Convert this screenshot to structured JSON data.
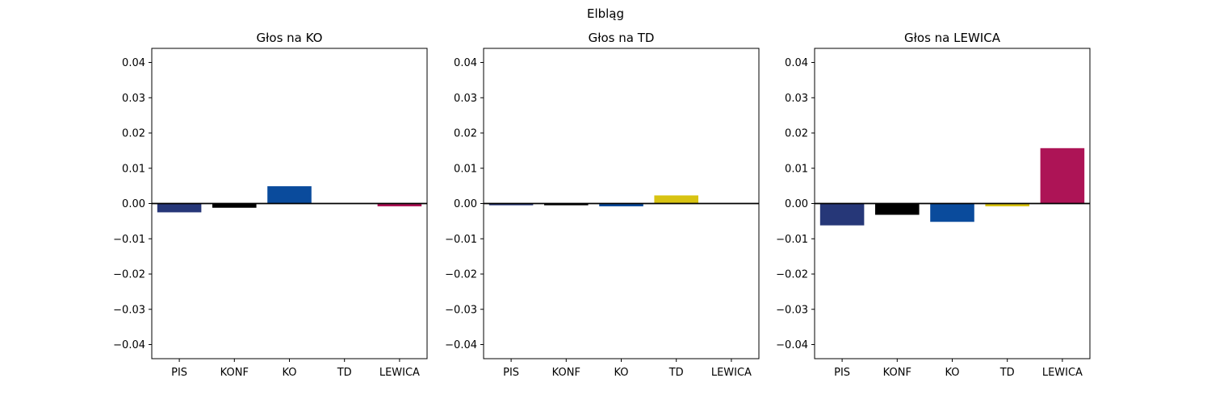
{
  "figure": {
    "suptitle": "Elbląg"
  },
  "colors": {
    "PIS": "#263778",
    "KONF": "#000000",
    "KO": "#0a4b9c",
    "TD": "#d8c312",
    "LEWICA": "#ad1456"
  },
  "chart_data": [
    {
      "type": "bar",
      "title": "Głos na KO",
      "categories": [
        "PIS",
        "KONF",
        "KO",
        "TD",
        "LEWICA"
      ],
      "values": [
        -0.0025,
        -0.0012,
        0.0049,
        0.0,
        -0.0008
      ],
      "ylim": [
        -0.044,
        0.044
      ],
      "yticks": [
        0.04,
        0.03,
        0.02,
        0.01,
        0.0,
        -0.01,
        -0.02,
        -0.03,
        -0.04
      ],
      "ytick_labels": [
        "0.04",
        "0.03",
        "0.02",
        "0.01",
        "0.00",
        "−0.01",
        "−0.02",
        "−0.03",
        "−0.04"
      ],
      "xlabel": "",
      "ylabel": "",
      "grid": false
    },
    {
      "type": "bar",
      "title": "Głos na TD",
      "categories": [
        "PIS",
        "KONF",
        "KO",
        "TD",
        "LEWICA"
      ],
      "values": [
        -0.0005,
        -0.0005,
        -0.0008,
        0.0023,
        0.0
      ],
      "ylim": [
        -0.044,
        0.044
      ],
      "yticks": [
        0.04,
        0.03,
        0.02,
        0.01,
        0.0,
        -0.01,
        -0.02,
        -0.03,
        -0.04
      ],
      "ytick_labels": [
        "0.04",
        "0.03",
        "0.02",
        "0.01",
        "0.00",
        "−0.01",
        "−0.02",
        "−0.03",
        "−0.04"
      ],
      "xlabel": "",
      "ylabel": "",
      "grid": false
    },
    {
      "type": "bar",
      "title": "Głos na LEWICA",
      "categories": [
        "PIS",
        "KONF",
        "KO",
        "TD",
        "LEWICA"
      ],
      "values": [
        -0.0062,
        -0.0032,
        -0.0052,
        -0.0008,
        0.0157
      ],
      "ylim": [
        -0.044,
        0.044
      ],
      "yticks": [
        0.04,
        0.03,
        0.02,
        0.01,
        0.0,
        -0.01,
        -0.02,
        -0.03,
        -0.04
      ],
      "ytick_labels": [
        "0.04",
        "0.03",
        "0.02",
        "0.01",
        "0.00",
        "−0.01",
        "−0.02",
        "−0.03",
        "−0.04"
      ],
      "xlabel": "",
      "ylabel": "",
      "grid": false
    }
  ]
}
